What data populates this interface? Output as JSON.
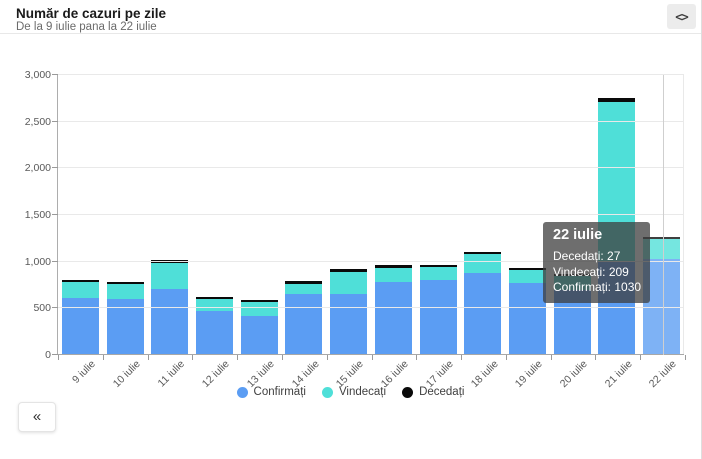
{
  "header": {
    "title": "Număr de cazuri pe zile",
    "subtitle": "De la 9 iulie pana la 22 iulie",
    "embed_icon": "<>"
  },
  "chart_data": {
    "type": "bar",
    "stacked": true,
    "title": "Număr de cazuri pe zile",
    "xlabel": "",
    "ylabel": "",
    "ylim": [
      0,
      3000
    ],
    "ytick_step": 500,
    "ytick_labels": [
      "0",
      "500",
      "1,000",
      "1,500",
      "2,000",
      "2,500",
      "3,000"
    ],
    "grid": true,
    "legend_position": "bottom",
    "highlighted_category": "22 iulie",
    "categories": [
      "9 iulie",
      "10 iulie",
      "11 iulie",
      "12 iulie",
      "13 iulie",
      "14 iulie",
      "15 iulie",
      "16 iulie",
      "17 iulie",
      "18 iulie",
      "19 iulie",
      "20 iulie",
      "21 iulie",
      "22 iulie"
    ],
    "series": [
      {
        "name": "Confirmați",
        "color": "#5B9DF3",
        "values": [
          614,
          601,
          706,
          469,
          423,
          655,
          649,
          781,
          803,
          882,
          771,
          700,
          994,
          1030
        ]
      },
      {
        "name": "Vindecați",
        "color": "#4FDFD8",
        "values": [
          170,
          160,
          285,
          135,
          150,
          105,
          240,
          151,
          144,
          201,
          135,
          150,
          1722,
          209
        ]
      },
      {
        "name": "Decedați",
        "color": "#0a0a0a",
        "values": [
          17,
          25,
          29,
          16,
          15,
          29,
          29,
          30,
          21,
          25,
          23,
          22,
          36,
          27
        ]
      }
    ]
  },
  "tooltip": {
    "title": "22 iulie",
    "rows": [
      {
        "label": "Decedați",
        "value": "27"
      },
      {
        "label": "Vindecați",
        "value": "209"
      },
      {
        "label": "Confirmați",
        "value": "1030"
      }
    ]
  },
  "controls": {
    "collapse_icon": "«"
  },
  "colors": {
    "accent_blue": "#5B9DF3",
    "accent_cyan": "#4FDFD8",
    "accent_black": "#0a0a0a",
    "gridline": "#e9e9e9",
    "axis": "#a8a8a8",
    "tooltip_bg": "rgba(62,62,62,0.75)"
  }
}
